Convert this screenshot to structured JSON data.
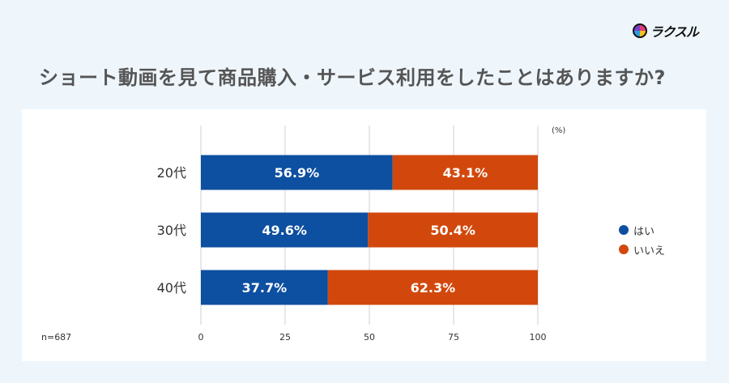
{
  "brand": {
    "logo_text": "ラクスル"
  },
  "title": "ショート動画を見て商品購入・サービス利用をしたことはありますか?",
  "sample_size": "n=687",
  "unit_label": "(%)",
  "colors": {
    "yes": "#0d4fa0",
    "no": "#d2480c"
  },
  "chart_data": {
    "type": "bar",
    "orientation": "horizontal",
    "stacked": true,
    "percent_stacked": true,
    "categories": [
      "20代",
      "30代",
      "40代"
    ],
    "series": [
      {
        "name": "はい",
        "values": [
          56.9,
          49.6,
          37.7
        ],
        "labels": [
          "56.9%",
          "49.6%",
          "37.7%"
        ]
      },
      {
        "name": "いいえ",
        "values": [
          43.1,
          50.4,
          62.3
        ],
        "labels": [
          "43.1%",
          "50.4%",
          "62.3%"
        ]
      }
    ],
    "x_ticks": [
      "0",
      "25",
      "50",
      "75",
      "100"
    ],
    "xlim": [
      0,
      100
    ],
    "grid": true,
    "legend_position": "right"
  }
}
